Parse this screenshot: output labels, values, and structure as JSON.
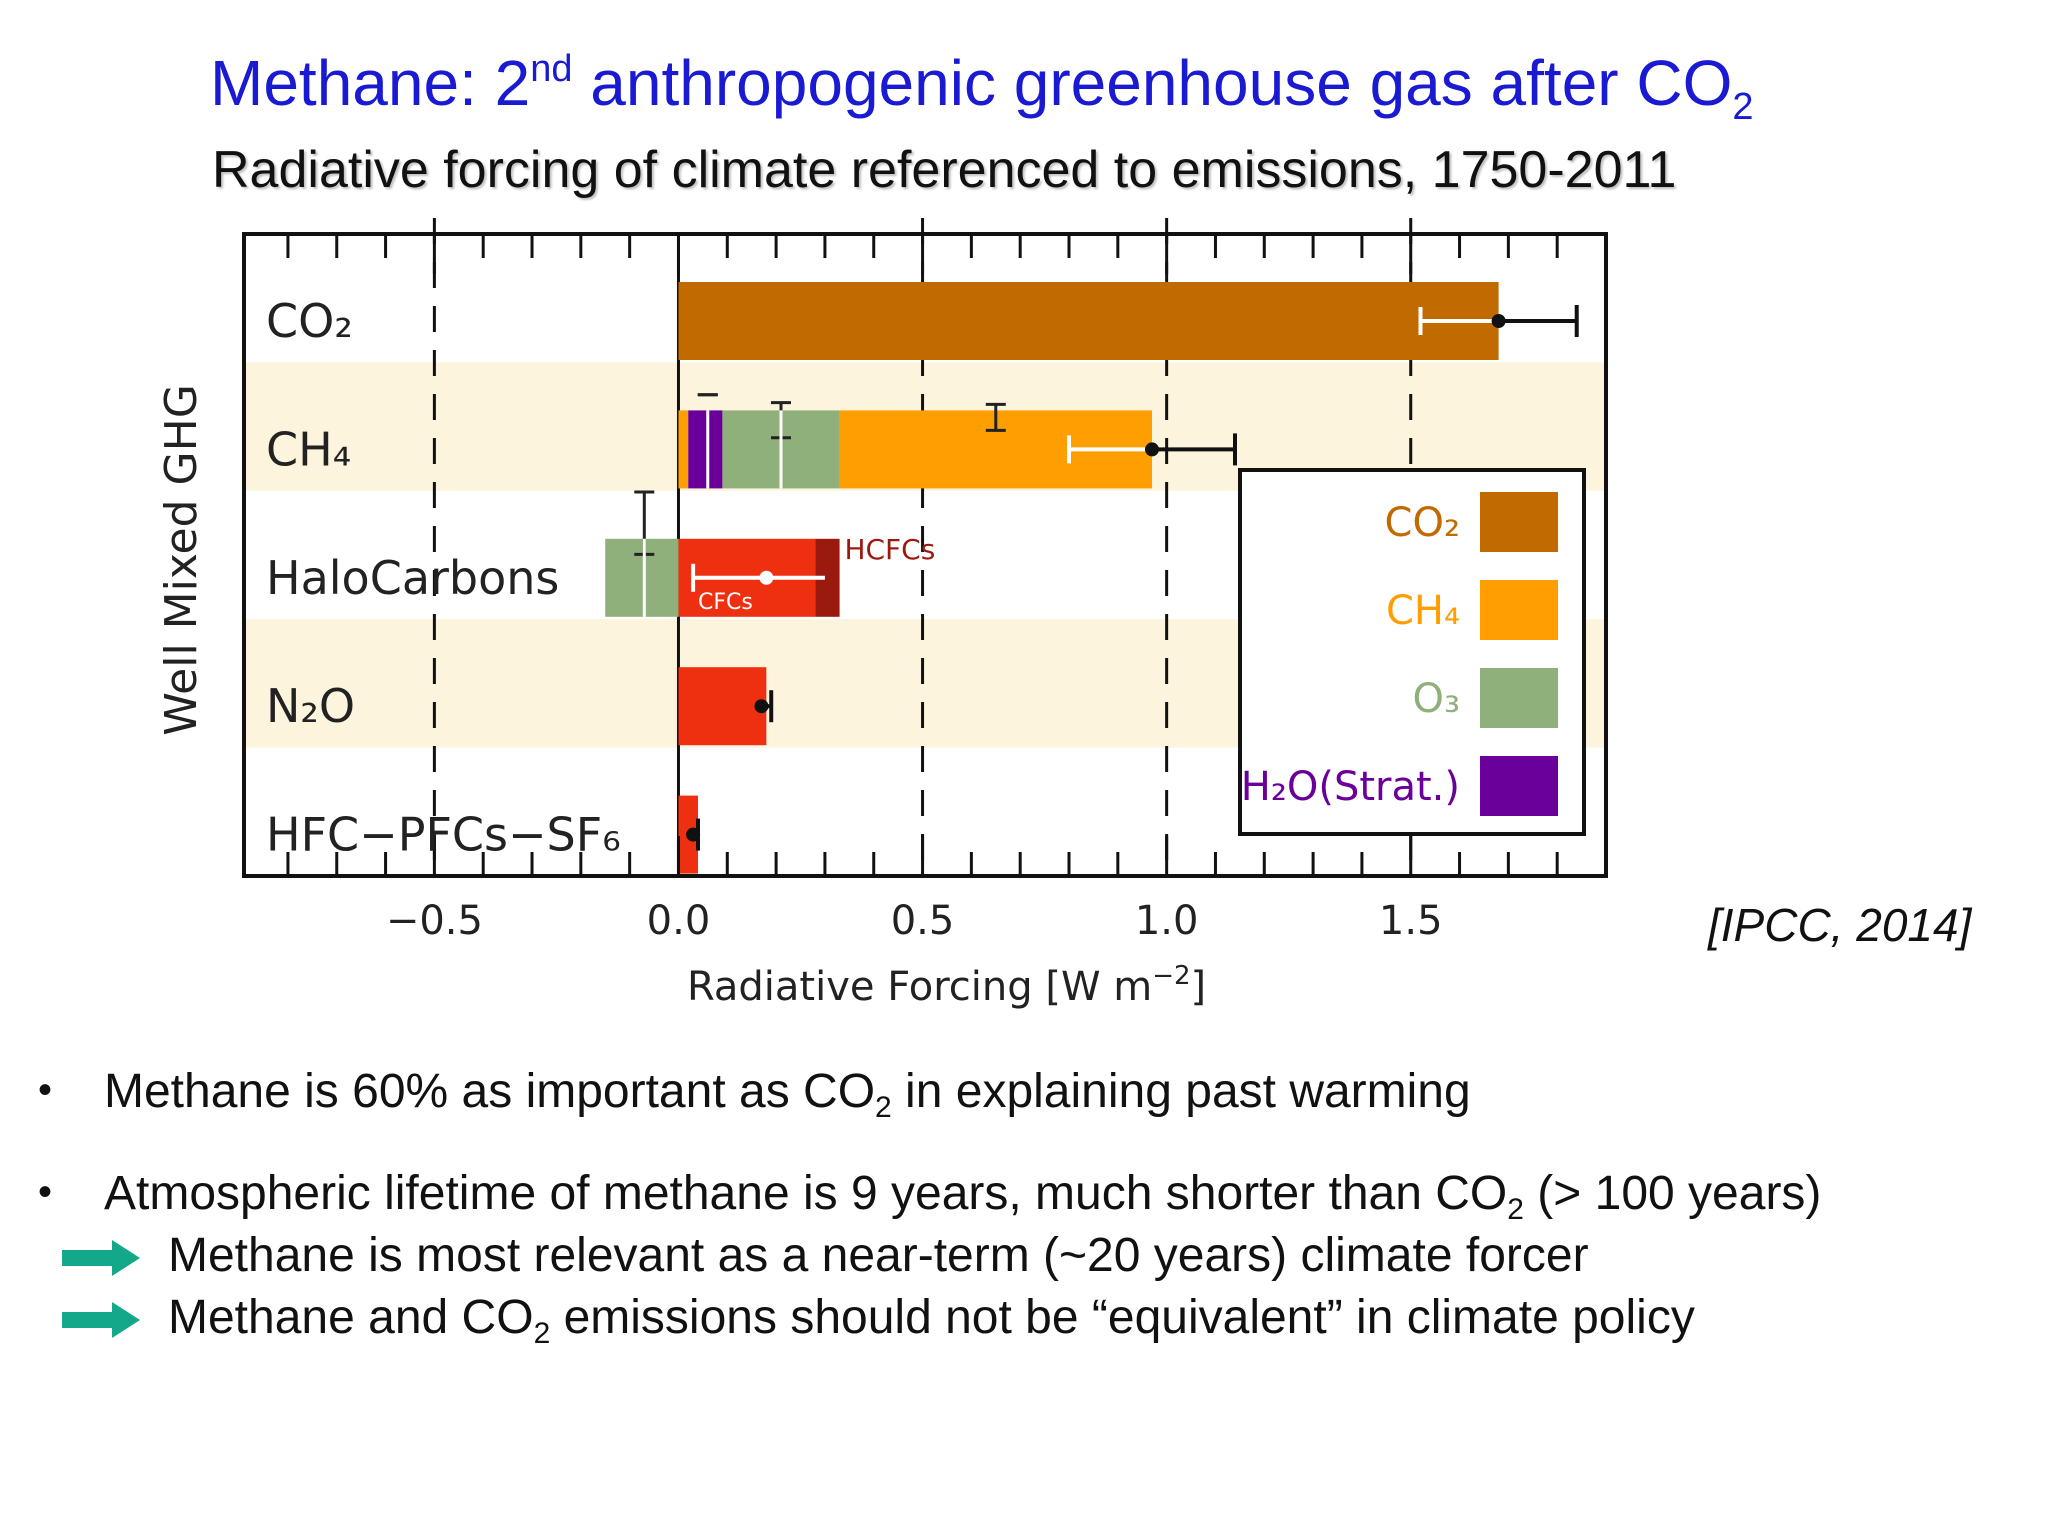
{
  "title": {
    "prefix": "Methane: 2",
    "sup": "nd",
    "middle": " anthropogenic greenhouse gas after CO",
    "sub": "2"
  },
  "subtitle": "Radiative forcing of climate referenced to emissions, 1750-2011",
  "source": "[IPCC, 2014]",
  "chart_data": {
    "type": "bar",
    "orientation": "horizontal-stacked",
    "xlabel": "Radiative Forcing [W m",
    "xlabel_sup": "−2",
    "xlabel_close": "]",
    "ylabel": "Well Mixed GHG",
    "xlim": [
      -0.89,
      1.9
    ],
    "x_ticks": [
      -0.5,
      0.0,
      0.5,
      1.0,
      1.5
    ],
    "x_tick_labels": [
      "−0.5",
      "0.0",
      "0.5",
      "1.0",
      "1.5"
    ],
    "dashed_lines_at": [
      -0.5,
      0.5,
      1.0,
      1.5
    ],
    "categories": [
      "CO₂",
      "CH₄",
      "HaloCarbons",
      "N₂O",
      "HFC−PFCs−SF₆"
    ],
    "category_shaded": [
      false,
      true,
      false,
      true,
      false
    ],
    "colors": {
      "CO2": "#c06a00",
      "CH4": "#ff9e00",
      "O3": "#8fb07a",
      "H2O": "#6a0099",
      "HaloRed": "#ee3010",
      "HCFC": "#9b1a10",
      "band": "#fdf4de"
    },
    "bars": [
      {
        "category": "CO₂",
        "segments": [
          {
            "component": "CO2",
            "from": 0.0,
            "to": 1.68
          }
        ]
      },
      {
        "category": "CH₄",
        "segments": [
          {
            "component": "CH4",
            "from": 0.0,
            "to": 0.02
          },
          {
            "component": "H2O",
            "from": 0.02,
            "to": 0.09
          },
          {
            "component": "O3",
            "from": 0.09,
            "to": 0.33
          },
          {
            "component": "CH4",
            "from": 0.33,
            "to": 0.97
          }
        ]
      },
      {
        "category": "HaloCarbons",
        "segments": [
          {
            "component": "O3",
            "from": -0.15,
            "to": 0.0
          },
          {
            "component": "HaloRed",
            "from": 0.0,
            "to": 0.28
          },
          {
            "component": "HCFC",
            "from": 0.28,
            "to": 0.33
          }
        ]
      },
      {
        "category": "N₂O",
        "segments": [
          {
            "component": "HaloRed",
            "from": 0.0,
            "to": 0.18
          }
        ]
      },
      {
        "category": "HFC−PFCs−SF₆",
        "segments": [
          {
            "component": "HaloRed",
            "from": 0.0,
            "to": 0.04
          }
        ]
      }
    ],
    "error_bars": [
      {
        "category": "CO₂",
        "kind": "white-range",
        "low": 1.52,
        "high": 1.68
      },
      {
        "category": "CO₂",
        "kind": "black-point",
        "value": 1.68,
        "low": 1.68,
        "high": 1.84
      },
      {
        "category": "CH₄",
        "kind": "vertical",
        "x": 0.06,
        "low_offset": -0.7,
        "high_offset": 0.7
      },
      {
        "category": "CH₄",
        "kind": "vertical",
        "x": 0.21,
        "low_offset": -0.15,
        "high_offset": 0.6
      },
      {
        "category": "CH₄",
        "kind": "vertical-small",
        "x": 0.65,
        "low_offset": 0.3,
        "high_offset": 0.5
      },
      {
        "category": "CH₄",
        "kind": "white-range",
        "low": 0.8,
        "high": 0.97
      },
      {
        "category": "CH₄",
        "kind": "black-point",
        "value": 0.97,
        "low": 0.97,
        "high": 1.14
      },
      {
        "category": "HaloCarbons",
        "kind": "vertical",
        "x": -0.07,
        "low_offset": -0.3,
        "high_offset": 1.1
      },
      {
        "category": "HaloCarbons",
        "kind": "white-range",
        "low": 0.03,
        "high": 0.3
      },
      {
        "category": "HaloCarbons",
        "kind": "point",
        "value": 0.18
      },
      {
        "category": "N₂O",
        "kind": "black-point",
        "value": 0.17,
        "low": 0.16,
        "high": 0.19
      },
      {
        "category": "HFC−PFCs−SF₆",
        "kind": "black-point",
        "value": 0.03,
        "low": 0.025,
        "high": 0.04
      }
    ],
    "annotations": [
      "HCFCs",
      "CFCs"
    ],
    "legend": {
      "placement": "bottom-right",
      "entries": [
        {
          "label": "CO₂",
          "component": "CO2"
        },
        {
          "label": "CH₄",
          "component": "CH4"
        },
        {
          "label": "O₃",
          "component": "O3"
        },
        {
          "label": "H₂O(Strat.)",
          "component": "H2O"
        }
      ]
    }
  },
  "bullets": [
    {
      "pre": "Methane is 60% as important as CO",
      "sub": "2",
      "post": " in explaining past warming"
    },
    {
      "pre": "Atmospheric lifetime of methane is 9 years, much shorter than CO",
      "sub": "2",
      "post": " (> 100 years)"
    }
  ],
  "arrows": [
    {
      "pre": "Methane is most relevant as a near-term (~20 years) climate forcer",
      "sub": "",
      "post": ""
    },
    {
      "pre": "Methane and CO",
      "sub": "2",
      "post": " emissions should not be “equivalent” in climate policy"
    }
  ],
  "arrow_color": "#12a889"
}
